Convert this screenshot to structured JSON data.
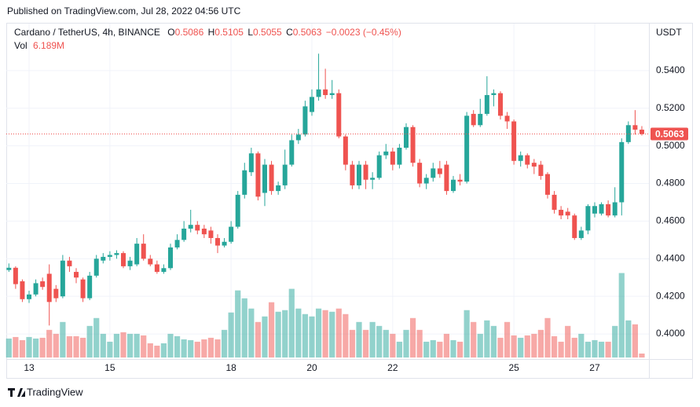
{
  "header": {
    "published": "Published on TradingView.com, Jul 28, 2022 04:56 UTC",
    "footer": "TradingView"
  },
  "chart_data": {
    "type": "candlestick",
    "title": "Cardano / TetherUS, 4h, BINANCE",
    "ohlc_letters": [
      "O",
      "H",
      "L",
      "C"
    ],
    "change_text": "−0.0023 (−0.45%)",
    "y_unit": "USDT",
    "up_color": "#26a69a",
    "down_color": "#ef5350",
    "grid": true,
    "ylim": [
      0.3875,
      0.565
    ],
    "yticks": [
      {
        "value": 0.4,
        "label": "0.4000"
      },
      {
        "value": 0.42,
        "label": "0.4200"
      },
      {
        "value": 0.44,
        "label": "0.4400"
      },
      {
        "value": 0.46,
        "label": "0.4600"
      },
      {
        "value": 0.48,
        "label": "0.4800"
      },
      {
        "value": 0.5,
        "label": "0.5000"
      },
      {
        "value": 0.52,
        "label": "0.5200"
      },
      {
        "value": 0.54,
        "label": "0.5400"
      }
    ],
    "categories": [
      null,
      null,
      null,
      "13",
      null,
      null,
      null,
      null,
      null,
      null,
      null,
      null,
      null,
      null,
      null,
      "15",
      null,
      null,
      null,
      null,
      null,
      null,
      null,
      null,
      null,
      null,
      null,
      null,
      null,
      null,
      null,
      null,
      null,
      "18",
      null,
      null,
      null,
      null,
      null,
      null,
      null,
      null,
      null,
      null,
      null,
      "20",
      null,
      null,
      null,
      null,
      null,
      null,
      null,
      null,
      null,
      null,
      null,
      "22",
      null,
      null,
      null,
      null,
      null,
      null,
      null,
      null,
      null,
      null,
      null,
      null,
      null,
      null,
      null,
      null,
      null,
      "25",
      null,
      null,
      null,
      null,
      null,
      null,
      null,
      null,
      null,
      null,
      null,
      "27",
      null,
      null,
      null,
      null,
      null,
      null,
      null
    ],
    "open": [
      0.434,
      0.4352,
      0.428,
      0.4185,
      0.421,
      0.428,
      0.432,
      0.424,
      0.42,
      0.439,
      0.433,
      0.429,
      0.419,
      0.431,
      0.439,
      0.441,
      0.442,
      0.443,
      0.436,
      0.437,
      0.448,
      0.44,
      0.437,
      0.433,
      0.435,
      0.446,
      0.45,
      0.456,
      0.458,
      0.456,
      0.455,
      0.451,
      0.447,
      0.449,
      0.457,
      0.474,
      0.486,
      0.496,
      0.475,
      0.49,
      0.476,
      0.479,
      0.49,
      0.503,
      0.506,
      0.518,
      0.526,
      0.53,
      0.527,
      0.528,
      0.505,
      0.49,
      0.479,
      0.49,
      0.482,
      0.483,
      0.495,
      0.497,
      0.49,
      0.499,
      0.51,
      0.491,
      0.48,
      0.483,
      0.488,
      0.49,
      0.476,
      0.482,
      0.481,
      0.517,
      0.511,
      0.517,
      0.527,
      0.528,
      0.516,
      0.513,
      0.492,
      0.495,
      0.491,
      0.49,
      0.485,
      0.474,
      0.466,
      0.465,
      0.463,
      0.451,
      0.455,
      0.464,
      0.464,
      0.469,
      0.463,
      0.47,
      0.502,
      0.511,
      0.5086
    ],
    "high": [
      0.4375,
      0.436,
      0.429,
      0.423,
      0.429,
      0.43,
      0.437,
      0.426,
      0.442,
      0.441,
      0.435,
      0.43,
      0.433,
      0.442,
      0.443,
      0.444,
      0.4445,
      0.444,
      0.441,
      0.451,
      0.453,
      0.442,
      0.439,
      0.437,
      0.448,
      0.453,
      0.46,
      0.466,
      0.46,
      0.458,
      0.457,
      0.453,
      0.451,
      0.46,
      0.476,
      0.491,
      0.499,
      0.497,
      0.493,
      0.492,
      0.481,
      0.498,
      0.506,
      0.509,
      0.524,
      0.53,
      0.549,
      0.541,
      0.535,
      0.53,
      0.506,
      0.492,
      0.492,
      0.492,
      0.486,
      0.497,
      0.501,
      0.499,
      0.501,
      0.512,
      0.511,
      0.493,
      0.485,
      0.491,
      0.492,
      0.492,
      0.484,
      0.485,
      0.518,
      0.519,
      0.525,
      0.537,
      0.53,
      0.529,
      0.518,
      0.514,
      0.497,
      0.496,
      0.493,
      0.492,
      0.486,
      0.476,
      0.468,
      0.467,
      0.464,
      0.457,
      0.469,
      0.47,
      0.47,
      0.471,
      0.478,
      0.504,
      0.513,
      0.519,
      0.5105
    ],
    "low": [
      0.433,
      0.424,
      0.417,
      0.4165,
      0.42,
      0.4235,
      0.4045,
      0.417,
      0.419,
      0.433,
      0.427,
      0.417,
      0.418,
      0.43,
      0.4375,
      0.439,
      0.44,
      0.435,
      0.434,
      0.436,
      0.439,
      0.436,
      0.432,
      0.432,
      0.434,
      0.445,
      0.449,
      0.454,
      0.453,
      0.451,
      0.448,
      0.443,
      0.446,
      0.448,
      0.456,
      0.472,
      0.484,
      0.471,
      0.468,
      0.474,
      0.474,
      0.477,
      0.489,
      0.501,
      0.505,
      0.516,
      0.524,
      0.525,
      0.525,
      0.504,
      0.487,
      0.477,
      0.477,
      0.477,
      0.477,
      0.482,
      0.493,
      0.487,
      0.488,
      0.498,
      0.489,
      0.478,
      0.477,
      0.481,
      0.483,
      0.474,
      0.475,
      0.479,
      0.48,
      0.51,
      0.51,
      0.516,
      0.521,
      0.514,
      0.509,
      0.49,
      0.489,
      0.488,
      0.485,
      0.482,
      0.472,
      0.464,
      0.461,
      0.461,
      0.45,
      0.45,
      0.453,
      0.462,
      0.463,
      0.462,
      0.462,
      0.463,
      0.501,
      0.506,
      0.5055
    ],
    "close": [
      0.4352,
      0.4265,
      0.4185,
      0.421,
      0.427,
      0.425,
      0.417,
      0.419,
      0.439,
      0.436,
      0.43,
      0.419,
      0.431,
      0.44,
      0.441,
      0.442,
      0.443,
      0.436,
      0.439,
      0.448,
      0.44,
      0.437,
      0.433,
      0.435,
      0.446,
      0.45,
      0.456,
      0.458,
      0.455,
      0.453,
      0.451,
      0.447,
      0.449,
      0.457,
      0.474,
      0.487,
      0.496,
      0.473,
      0.49,
      0.476,
      0.479,
      0.49,
      0.503,
      0.506,
      0.521,
      0.526,
      0.53,
      0.527,
      0.528,
      0.505,
      0.49,
      0.479,
      0.49,
      0.482,
      0.483,
      0.495,
      0.497,
      0.49,
      0.499,
      0.51,
      0.491,
      0.48,
      0.483,
      0.488,
      0.485,
      0.476,
      0.482,
      0.481,
      0.516,
      0.511,
      0.517,
      0.527,
      0.528,
      0.516,
      0.513,
      0.492,
      0.495,
      0.49,
      0.489,
      0.484,
      0.474,
      0.466,
      0.463,
      0.463,
      0.451,
      0.455,
      0.468,
      0.468,
      0.469,
      0.463,
      0.47,
      0.502,
      0.511,
      0.5086,
      0.5063
    ],
    "volume": {
      "name": "Vol",
      "last_label": "6.189M",
      "values": [
        29.8,
        32.2,
        27.3,
        32.2,
        29.8,
        31,
        43.4,
        37.2,
        55.8,
        33.5,
        33.5,
        31,
        49.6,
        62,
        37.2,
        24.8,
        37.2,
        39.7,
        37.2,
        37.2,
        34.7,
        22.3,
        18.6,
        22.3,
        37.2,
        33.5,
        28.5,
        27.3,
        24.8,
        28.5,
        31,
        28.5,
        43.4,
        70.7,
        105.4,
        93,
        76.9,
        55.8,
        64.5,
        86.8,
        71.9,
        74.4,
        107.9,
        76.9,
        68.2,
        64.5,
        76.9,
        74.4,
        71.9,
        76.9,
        68.2,
        43.4,
        55.8,
        43.4,
        55.8,
        49.6,
        43.4,
        37.2,
        24.8,
        43.4,
        62,
        43.4,
        24.8,
        27.3,
        24.8,
        37.2,
        27.3,
        24.8,
        74.4,
        55.8,
        37.2,
        58.3,
        49.6,
        31,
        55.8,
        34.7,
        31,
        34.7,
        37.2,
        43.4,
        62,
        33.5,
        24.8,
        49.6,
        31,
        37.2,
        24.8,
        27.3,
        24.8,
        24.8,
        49.6,
        132.7,
        58.3,
        52.1,
        6.189
      ]
    }
  }
}
